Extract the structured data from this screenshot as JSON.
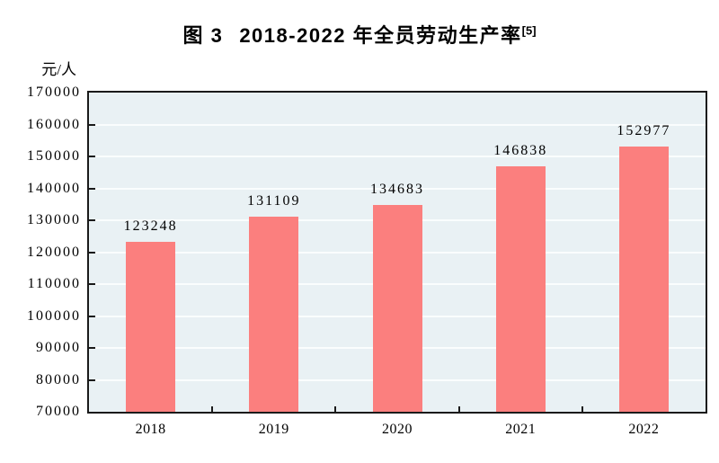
{
  "title": {
    "prefix": "图 3",
    "main": "2018-2022 年全员劳动生产率",
    "superscript": "[5]"
  },
  "y_axis": {
    "unit_label": "元/人",
    "tick_labels": [
      "170000",
      "160000",
      "150000",
      "140000",
      "130000",
      "120000",
      "110000",
      "100000",
      "90000",
      "80000",
      "70000"
    ]
  },
  "x_axis": {
    "tick_labels": [
      "2018",
      "2019",
      "2020",
      "2021",
      "2022"
    ]
  },
  "chart_data": {
    "type": "bar",
    "title": "图 3 2018-2022 年全员劳动生产率[5]",
    "categories": [
      "2018",
      "2019",
      "2020",
      "2021",
      "2022"
    ],
    "values": [
      123248,
      131109,
      134683,
      146838,
      152977
    ],
    "data_labels": [
      "123248",
      "131109",
      "134683",
      "146838",
      "152977"
    ],
    "xlabel": "",
    "ylabel": "元/人",
    "ylim": [
      70000,
      170000
    ],
    "ytick_step": 10000,
    "grid": true,
    "legend": "none",
    "colors": {
      "bar": "#FB7F7E",
      "plot_background": "#E9F1F4",
      "gridline": "#FAFDFD",
      "axis": "#1A1A1A",
      "text": "#000000"
    }
  }
}
